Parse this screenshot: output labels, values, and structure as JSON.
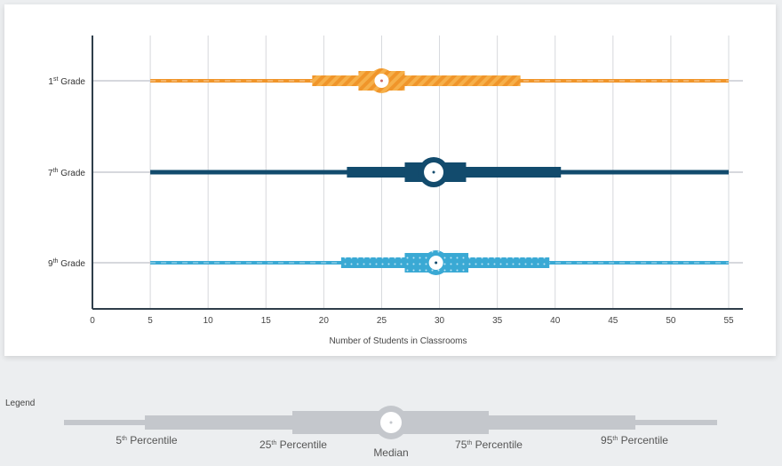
{
  "chart_data": {
    "type": "box",
    "xlabel": "Number of Students in Classrooms",
    "xlim": [
      0,
      55
    ],
    "xticks": [
      0,
      5,
      10,
      15,
      20,
      25,
      30,
      35,
      40,
      45,
      50,
      55
    ],
    "grid": true,
    "series": [
      {
        "name": "1st Grade",
        "base": "1",
        "sup": "st",
        "label": " Grade",
        "color": "#f0952a",
        "pattern": "stripes",
        "min": 5,
        "p5": 19,
        "p25": 23,
        "median": 25,
        "p75": 27,
        "p95": 37,
        "max": 55
      },
      {
        "name": "7th Grade",
        "base": "7",
        "sup": "th",
        "label": " Grade",
        "color": "#124b6d",
        "pattern": "solid",
        "min": 5,
        "p5": 22,
        "p25": 27,
        "median": 29.5,
        "p75": 32.3,
        "p95": 40.5,
        "max": 55
      },
      {
        "name": "9th Grade",
        "base": "9",
        "sup": "th",
        "label": " Grade",
        "color": "#3aa9d4",
        "pattern": "dots",
        "min": 5,
        "p5": 21.5,
        "p25": 27,
        "median": 29.7,
        "p75": 32.5,
        "p95": 39.5,
        "max": 55
      }
    ]
  },
  "legend": {
    "title": "Legend",
    "items": [
      {
        "base": "5",
        "sup": "th",
        "text": " Percentile"
      },
      {
        "base": "25",
        "sup": "th",
        "text": " Percentile"
      },
      {
        "base": "",
        "sup": "",
        "text": "Median"
      },
      {
        "base": "75",
        "sup": "th",
        "text": " Percentile"
      },
      {
        "base": "95",
        "sup": "th",
        "text": " Percentile"
      }
    ],
    "color": "#c4c7cc"
  }
}
